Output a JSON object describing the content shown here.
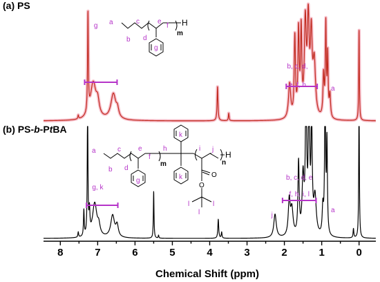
{
  "chart_data": [
    {
      "type": "line",
      "panel_label": "(a) PS",
      "line_color": "#c0281c",
      "halo_color": "#f4b2c0",
      "annotations": [
        {
          "text": "g",
          "ppm": 7.05
        },
        {
          "text": "b, c, d,",
          "ppm": 1.65
        },
        {
          "text": "e, f, h",
          "ppm": 1.65
        },
        {
          "text": "a",
          "ppm": 0.7
        }
      ],
      "integration_bars": [
        {
          "from_ppm": 7.35,
          "to_ppm": 6.48
        },
        {
          "from_ppm": 1.95,
          "to_ppm": 1.12
        }
      ],
      "structure_letters": [
        "a",
        "b",
        "c",
        "d",
        "e",
        "f",
        "g",
        "m",
        "H"
      ],
      "peaks": [
        {
          "ppm": 7.52,
          "h": 0.05,
          "w": 0.012
        },
        {
          "ppm": 7.26,
          "h": 1.3,
          "w": 0.012
        },
        {
          "ppm": 7.12,
          "h": 0.48,
          "w": 0.09
        },
        {
          "ppm": 7.0,
          "h": 0.18,
          "w": 0.05
        },
        {
          "ppm": 6.58,
          "h": 0.34,
          "w": 0.08
        },
        {
          "ppm": 6.47,
          "h": 0.1,
          "w": 0.04
        },
        {
          "ppm": 3.79,
          "h": 0.45,
          "w": 0.014
        },
        {
          "ppm": 3.49,
          "h": 0.1,
          "w": 0.012
        },
        {
          "ppm": 1.86,
          "h": 0.46,
          "w": 0.035
        },
        {
          "ppm": 1.72,
          "h": 1.05,
          "w": 0.02
        },
        {
          "ppm": 1.62,
          "h": 1.1,
          "w": 0.02
        },
        {
          "ppm": 1.55,
          "h": 1.1,
          "w": 0.02
        },
        {
          "ppm": 1.44,
          "h": 1.2,
          "w": 0.03
        },
        {
          "ppm": 1.36,
          "h": 1.2,
          "w": 0.03
        },
        {
          "ppm": 1.28,
          "h": 1.0,
          "w": 0.03
        },
        {
          "ppm": 1.2,
          "h": 0.7,
          "w": 0.04
        },
        {
          "ppm": 0.95,
          "h": 0.55,
          "w": 0.02
        },
        {
          "ppm": 0.89,
          "h": 1.2,
          "w": 0.015
        },
        {
          "ppm": 0.84,
          "h": 0.8,
          "w": 0.015
        },
        {
          "ppm": 0.78,
          "h": 0.3,
          "w": 0.02
        },
        {
          "ppm": 0.0,
          "h": 1.2,
          "w": 0.01
        }
      ]
    },
    {
      "type": "line",
      "panel_label_parts": [
        "(b) PS-",
        "b",
        "-P",
        "t",
        "BA"
      ],
      "line_color": "#000000",
      "annotations": [
        {
          "text": "g, k",
          "ppm": 7.0
        },
        {
          "text": "b, c, d, e",
          "ppm": 1.6
        },
        {
          "text": "f, h, i, l",
          "ppm": 1.6
        },
        {
          "text": "j",
          "ppm": 2.33
        },
        {
          "text": "a",
          "ppm": 0.7
        }
      ],
      "integration_bars": [
        {
          "from_ppm": 7.3,
          "to_ppm": 6.46
        },
        {
          "from_ppm": 2.05,
          "to_ppm": 1.15
        }
      ],
      "structure_letters": [
        "a",
        "b",
        "c",
        "d",
        "e",
        "f",
        "g",
        "h",
        "i",
        "j",
        "k",
        "k",
        "l",
        "l",
        "l",
        "m",
        "n",
        "H",
        "O",
        "O"
      ],
      "peaks": [
        {
          "ppm": 7.52,
          "h": 0.07,
          "w": 0.012
        },
        {
          "ppm": 7.37,
          "h": 0.34,
          "w": 0.012
        },
        {
          "ppm": 7.27,
          "h": 1.9,
          "w": 0.01
        },
        {
          "ppm": 7.22,
          "h": 0.3,
          "w": 0.015
        },
        {
          "ppm": 7.08,
          "h": 0.45,
          "w": 0.07
        },
        {
          "ppm": 6.97,
          "h": 0.12,
          "w": 0.04
        },
        {
          "ppm": 6.6,
          "h": 0.29,
          "w": 0.06
        },
        {
          "ppm": 6.48,
          "h": 0.15,
          "w": 0.04
        },
        {
          "ppm": 5.5,
          "h": 0.62,
          "w": 0.01
        },
        {
          "ppm": 5.37,
          "h": 0.04,
          "w": 0.01
        },
        {
          "ppm": 3.77,
          "h": 0.25,
          "w": 0.014
        },
        {
          "ppm": 3.68,
          "h": 0.08,
          "w": 0.012
        },
        {
          "ppm": 2.25,
          "h": 0.31,
          "w": 0.04
        },
        {
          "ppm": 1.87,
          "h": 0.46,
          "w": 0.03
        },
        {
          "ppm": 1.8,
          "h": 0.35,
          "w": 0.04
        },
        {
          "ppm": 1.62,
          "h": 0.95,
          "w": 0.02
        },
        {
          "ppm": 1.5,
          "h": 0.75,
          "w": 0.03
        },
        {
          "ppm": 1.42,
          "h": 2.0,
          "w": 0.02
        },
        {
          "ppm": 1.34,
          "h": 2.0,
          "w": 0.02
        },
        {
          "ppm": 1.27,
          "h": 1.4,
          "w": 0.02
        },
        {
          "ppm": 1.18,
          "h": 0.5,
          "w": 0.04
        },
        {
          "ppm": 0.97,
          "h": 0.35,
          "w": 0.02
        },
        {
          "ppm": 0.91,
          "h": 2.0,
          "w": 0.015
        },
        {
          "ppm": 0.86,
          "h": 1.2,
          "w": 0.015
        },
        {
          "ppm": 0.15,
          "h": 0.12,
          "w": 0.012
        },
        {
          "ppm": 0.0,
          "h": 1.9,
          "w": 0.01
        }
      ]
    }
  ],
  "x_axis": {
    "title": "Chemical Shift (ppm)",
    "range_ppm": [
      8.45,
      -0.45
    ],
    "reversed": true,
    "ticks": [
      "8",
      "7",
      "6",
      "5",
      "4",
      "3",
      "2",
      "1",
      "0"
    ],
    "tick_values": [
      8,
      7,
      6,
      5,
      4,
      3,
      2,
      1,
      0
    ]
  },
  "colors": {
    "annotation": "#b533c8",
    "spectrum_a": "#c0281c",
    "spectrum_b": "#000000"
  }
}
